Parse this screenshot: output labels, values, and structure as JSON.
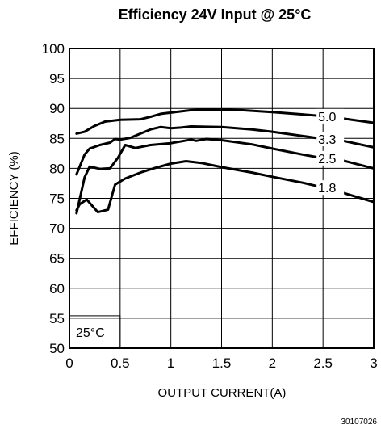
{
  "chart_data": {
    "type": "line",
    "title": "Efficiency 24V Input @ 25°C",
    "xlabel": "OUTPUT CURRENT(A)",
    "ylabel": "EFFICIENCY (%)",
    "xlim": [
      0,
      3
    ],
    "ylim": [
      50,
      100
    ],
    "x_ticks": [
      "0",
      "0.5",
      "1",
      "1.5",
      "2",
      "2.5",
      "3"
    ],
    "y_ticks": [
      "50",
      "55",
      "60",
      "65",
      "70",
      "75",
      "80",
      "85",
      "90",
      "95",
      "100"
    ],
    "grid": true,
    "annotation": "25°C",
    "figure_code": "30107026",
    "series": [
      {
        "name": "5.0",
        "x": [
          0.07,
          0.15,
          0.25,
          0.35,
          0.5,
          0.7,
          0.8,
          0.9,
          1.0,
          1.1,
          1.2,
          1.3,
          1.5,
          1.7,
          2.0,
          2.3,
          2.5,
          2.7,
          3.0
        ],
        "y": [
          85.8,
          86.1,
          87.1,
          87.8,
          88.1,
          88.2,
          88.6,
          89.1,
          89.3,
          89.5,
          89.7,
          89.8,
          89.8,
          89.7,
          89.4,
          89.0,
          88.7,
          88.3,
          87.6
        ]
      },
      {
        "name": "3.3",
        "x": [
          0.07,
          0.15,
          0.2,
          0.3,
          0.4,
          0.45,
          0.5,
          0.6,
          0.7,
          0.8,
          0.9,
          1.0,
          1.1,
          1.2,
          1.5,
          1.8,
          2.0,
          2.3,
          2.5,
          2.7,
          3.0
        ],
        "y": [
          79.0,
          82.3,
          83.3,
          83.9,
          84.3,
          84.9,
          84.8,
          85.1,
          85.8,
          86.5,
          86.9,
          86.7,
          86.8,
          87.0,
          86.9,
          86.5,
          86.1,
          85.4,
          84.9,
          84.6,
          83.5
        ]
      },
      {
        "name": "2.5",
        "x": [
          0.07,
          0.15,
          0.2,
          0.3,
          0.4,
          0.48,
          0.55,
          0.65,
          0.8,
          1.0,
          1.2,
          1.25,
          1.35,
          1.5,
          1.8,
          2.0,
          2.3,
          2.5,
          2.7,
          3.0
        ],
        "y": [
          72.5,
          78.5,
          80.3,
          79.9,
          80.0,
          81.8,
          83.9,
          83.4,
          83.9,
          84.2,
          84.8,
          84.6,
          84.9,
          84.7,
          84.0,
          83.3,
          82.3,
          81.7,
          81.3,
          80.0
        ]
      },
      {
        "name": "1.8",
        "x": [
          0.07,
          0.1,
          0.17,
          0.28,
          0.38,
          0.45,
          0.55,
          0.7,
          0.85,
          1.0,
          1.15,
          1.3,
          1.5,
          1.8,
          2.0,
          2.3,
          2.5,
          2.7,
          3.0
        ],
        "y": [
          73.0,
          74.0,
          74.8,
          72.7,
          73.1,
          77.3,
          78.3,
          79.3,
          80.1,
          80.8,
          81.2,
          80.9,
          80.2,
          79.3,
          78.6,
          77.6,
          76.8,
          75.9,
          74.4
        ]
      }
    ]
  }
}
